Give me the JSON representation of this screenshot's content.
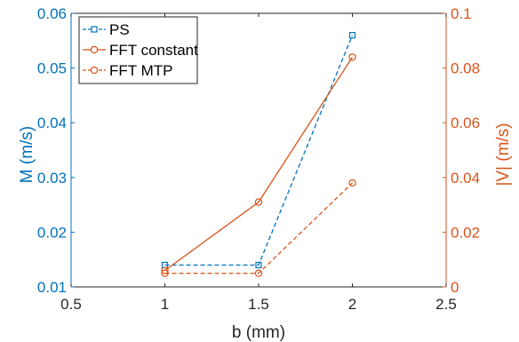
{
  "chart_data": {
    "type": "line",
    "xlabel": "b (mm)",
    "ylabel_left": "M (m/s)",
    "ylabel_right": "|V| (m/s)",
    "xlim": [
      0.5,
      2.5
    ],
    "ylim_left": [
      0.01,
      0.06
    ],
    "ylim_right": [
      0,
      0.1
    ],
    "x_ticks": [
      0.5,
      1,
      1.5,
      2,
      2.5
    ],
    "y_left_ticks": [
      0.01,
      0.02,
      0.03,
      0.04,
      0.05,
      0.06
    ],
    "y_right_ticks": [
      0,
      0.02,
      0.04,
      0.06,
      0.08,
      0.1
    ],
    "x_tick_labels": [
      "0.5",
      "1",
      "1.5",
      "2",
      "2.5"
    ],
    "y_left_tick_labels": [
      "0.01",
      "0.02",
      "0.03",
      "0.04",
      "0.05",
      "0.06"
    ],
    "y_right_tick_labels": [
      "0",
      "0.02",
      "0.04",
      "0.06",
      "0.08",
      "0.1"
    ],
    "grid": false,
    "legend_position": "top-left",
    "colors": {
      "left_axis": "#0072BD",
      "right_axis": "#D95319",
      "axes": "#262626"
    },
    "series": [
      {
        "name": "PS",
        "axis": "left",
        "color": "#0072BD",
        "line": "dashed",
        "marker": "square",
        "x": [
          1,
          1.5,
          2
        ],
        "y": [
          0.014,
          0.014,
          0.056
        ]
      },
      {
        "name": "FFT constant",
        "axis": "right",
        "color": "#D95319",
        "line": "solid",
        "marker": "circle",
        "x": [
          1,
          1.5,
          2
        ],
        "y": [
          0.006,
          0.031,
          0.084
        ]
      },
      {
        "name": "FFT MTP",
        "axis": "right",
        "color": "#D95319",
        "line": "dashed",
        "marker": "circle",
        "x": [
          1,
          1.5,
          2
        ],
        "y": [
          0.005,
          0.005,
          0.038
        ]
      }
    ]
  }
}
